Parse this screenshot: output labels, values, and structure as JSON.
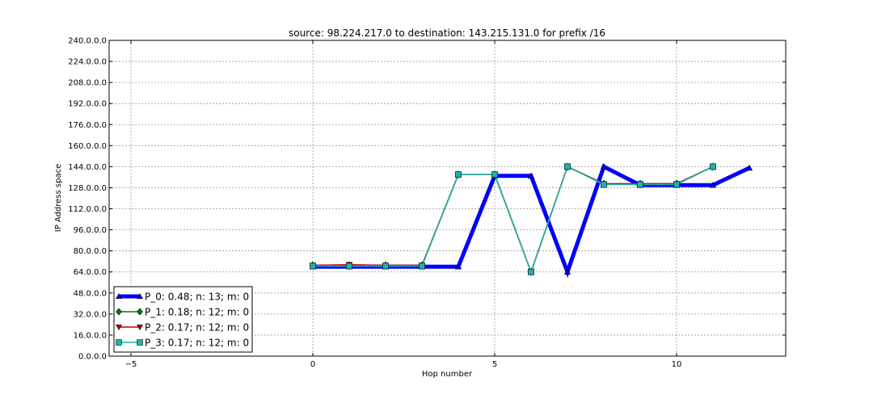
{
  "chart_data": {
    "type": "line",
    "title": "source: 98.224.217.0 to destination: 143.215.131.0 for prefix /16",
    "xlabel": "Hop number",
    "ylabel": "IP Address space",
    "xlim": [
      -5.6,
      13
    ],
    "ylim": [
      0,
      240
    ],
    "x_ticks": [
      -5,
      0,
      5,
      10
    ],
    "x_tick_labels": [
      "−5",
      "0",
      "5",
      "10"
    ],
    "y_ticks": [
      0,
      16,
      32,
      48,
      64,
      80,
      96,
      112,
      128,
      144,
      160,
      176,
      192,
      208,
      224,
      240
    ],
    "y_tick_labels": [
      "0.0.0.0",
      "16.0.0.0",
      "32.0.0.0",
      "48.0.0.0",
      "64.0.0.0",
      "80.0.0.0",
      "96.0.0.0",
      "112.0.0.0",
      "128.0.0.0",
      "144.0.0.0",
      "160.0.0.0",
      "176.0.0.0",
      "192.0.0.0",
      "208.0.0.0",
      "224.0.0.0",
      "240.0.0.0"
    ],
    "grid": true,
    "legend_position": "bottom-left",
    "series": [
      {
        "name": "P_0: 0.48; n: 13; m: 0",
        "color": "#0000ff",
        "marker": "triangle-up",
        "line_width": "thick",
        "x": [
          0,
          1,
          2,
          3,
          4,
          5,
          6,
          7,
          8,
          9,
          10,
          11,
          12
        ],
        "y": [
          68,
          68,
          68,
          68,
          68,
          137,
          137,
          64,
          144,
          130,
          130,
          130,
          143
        ]
      },
      {
        "name": "P_1: 0.18; n: 12; m: 0",
        "color": "#007f00",
        "marker": "diamond",
        "line_width": "thin",
        "x": [
          0,
          1,
          2,
          3,
          4,
          5,
          6,
          7,
          8,
          9,
          10,
          11
        ],
        "y": [
          69,
          69,
          69,
          69,
          138,
          138,
          64,
          144,
          131,
          131,
          131,
          144
        ]
      },
      {
        "name": "P_2: 0.17; n: 12; m: 0",
        "color": "#bf0000",
        "marker": "triangle-down",
        "line_width": "thin",
        "x": [
          0,
          1,
          2,
          3,
          4,
          5,
          6,
          7,
          8,
          9,
          10,
          11
        ],
        "y": [
          69,
          69.5,
          69,
          69,
          138,
          138,
          64,
          144,
          131,
          131,
          131,
          144
        ]
      },
      {
        "name": "P_3: 0.17; n: 12; m: 0",
        "color": "#20b2aa",
        "marker": "square",
        "line_width": "thin",
        "x": [
          0,
          1,
          2,
          3,
          4,
          5,
          6,
          7,
          8,
          9,
          10,
          11
        ],
        "y": [
          68.5,
          68.5,
          68.5,
          68.5,
          138,
          138,
          64,
          144,
          130.5,
          130.5,
          130.5,
          144
        ]
      }
    ]
  }
}
